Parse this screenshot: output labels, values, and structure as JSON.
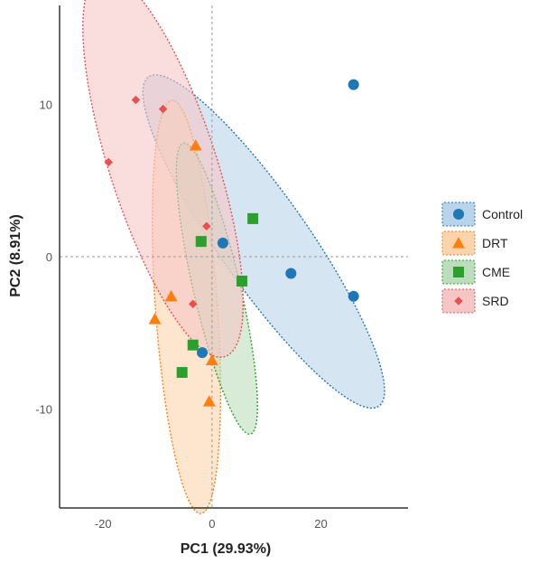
{
  "chart_data": {
    "type": "scatter",
    "title": "",
    "xlabel": "PC1 (29.93%)",
    "ylabel": "PC2 (8.91%)",
    "xlim": [
      -28,
      36
    ],
    "ylim": [
      -16.5,
      16.5
    ],
    "x_ticks": [
      {
        "value": -20,
        "label": "-20"
      },
      {
        "value": 0,
        "label": "0"
      },
      {
        "value": 20,
        "label": "20"
      }
    ],
    "y_ticks": [
      {
        "value": -10,
        "label": "-10"
      },
      {
        "value": 0,
        "label": "0"
      },
      {
        "value": 10,
        "label": "10"
      }
    ],
    "reference_lines": {
      "x": 0,
      "y": 0,
      "style": "dashed"
    },
    "grid": false,
    "legend_position": "right",
    "series": [
      {
        "name": "Control",
        "marker": "circle",
        "color": "#1f77b4",
        "fill": "#b9d4ea",
        "ellipse": {
          "cx": 9.5,
          "cy": 1.0,
          "rx": 8.2,
          "ry": 13.2,
          "rotation_deg": -35
        },
        "points": [
          [
            26,
            11.3
          ],
          [
            14.5,
            -1.1
          ],
          [
            26,
            -2.6
          ],
          [
            2,
            0.9
          ],
          [
            -1.8,
            -6.3
          ]
        ]
      },
      {
        "name": "DRT",
        "marker": "triangle",
        "color": "#ff7f0e",
        "fill": "#fbd3ad",
        "ellipse": {
          "cx": -4.7,
          "cy": -3.3,
          "rx": 5.7,
          "ry": 13.6,
          "rotation_deg": -4
        },
        "points": [
          [
            -3,
            7.3
          ],
          [
            -7.5,
            -2.6
          ],
          [
            -10.5,
            -4.1
          ],
          [
            0,
            -6.8
          ],
          [
            -0.5,
            -9.5
          ]
        ]
      },
      {
        "name": "CME",
        "marker": "square",
        "color": "#2ca02c",
        "fill": "#bcddbc",
        "ellipse": {
          "cx": 0.9,
          "cy": -2.1,
          "rx": 4.3,
          "ry": 9.8,
          "rotation_deg": -13
        },
        "points": [
          [
            7.5,
            2.5
          ],
          [
            -2,
            1.0
          ],
          [
            5.5,
            -1.6
          ],
          [
            -3.5,
            -5.8
          ],
          [
            -5.5,
            -7.6
          ]
        ]
      },
      {
        "name": "SRD",
        "marker": "diamond",
        "color": "#e85050",
        "fill": "#f6c6c6",
        "ellipse": {
          "cx": -9.0,
          "cy": 6.0,
          "rx": 9.8,
          "ry": 13.2,
          "rotation_deg": -18
        },
        "points": [
          [
            -14,
            10.3
          ],
          [
            -9,
            9.7
          ],
          [
            -19,
            6.2
          ],
          [
            -1,
            2.0
          ],
          [
            -3.5,
            -3.1
          ]
        ]
      }
    ]
  }
}
